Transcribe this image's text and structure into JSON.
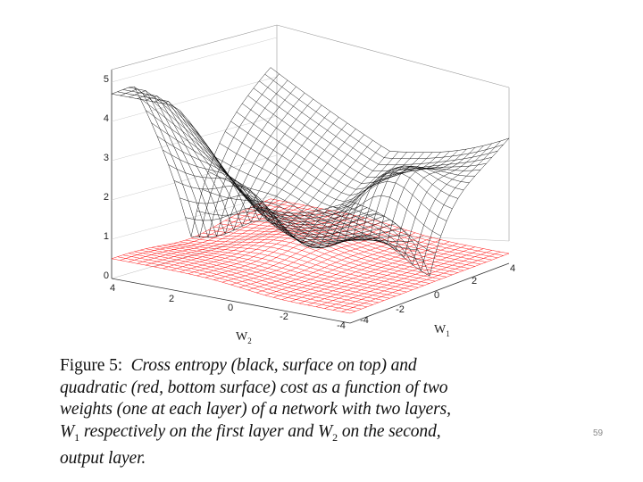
{
  "figure": {
    "axes": {
      "z_ticks": [
        "0",
        "1",
        "2",
        "3",
        "4",
        "5"
      ],
      "w2_ticks": [
        "4",
        "2",
        "0",
        "-2",
        "-4"
      ],
      "w1_ticks": [
        "-4",
        "-2",
        "0",
        "2",
        "4"
      ],
      "w2_label": "W",
      "w2_sub": "2",
      "w1_label": "W",
      "w1_sub": "1"
    },
    "surfaces": [
      {
        "cost": "cross entropy",
        "color": "#000000",
        "position": "top"
      },
      {
        "cost": "quadratic",
        "color": "#ff0000",
        "position": "bottom"
      }
    ],
    "caption": {
      "label": "Figure 5:",
      "lines": [
        "Cross entropy (black, surface on top) and",
        "quadratic (red, bottom surface) cost as a function of two",
        "weights (one at each layer) of a network with two layers,"
      ],
      "w1_symbol": "W",
      "w1_sub": "1",
      "line4_mid": "respectively on the first layer and",
      "w2_symbol": "W",
      "w2_sub": "2",
      "line4_end": "on the second,",
      "line5": "output layer."
    }
  },
  "page_number": "59"
}
